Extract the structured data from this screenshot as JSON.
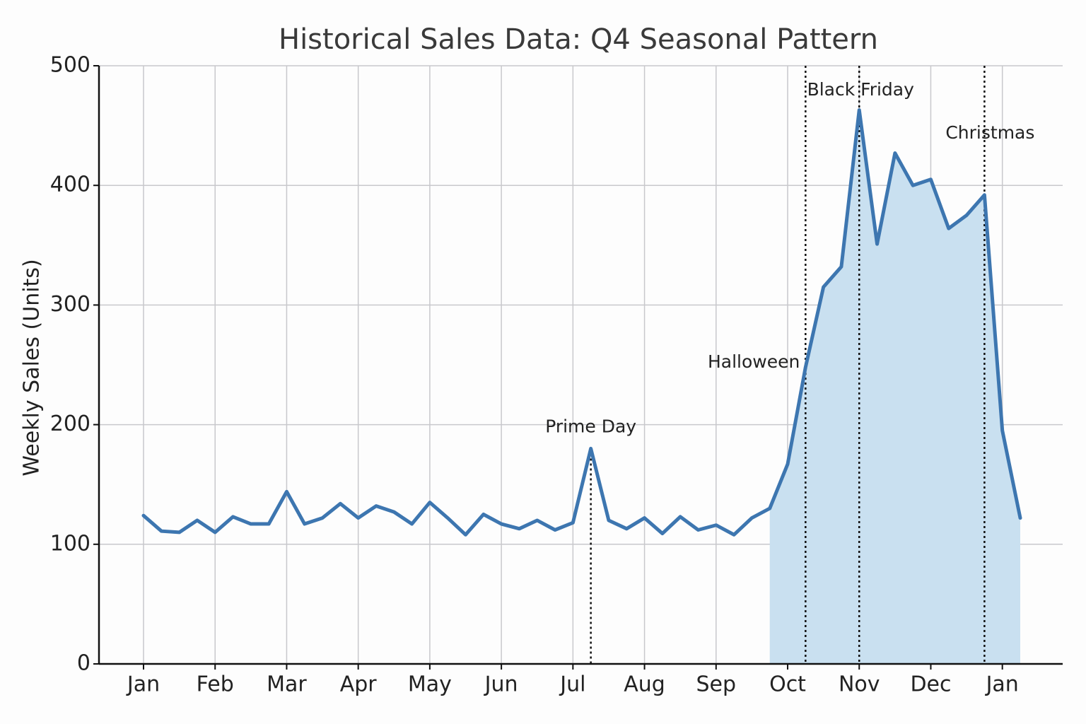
{
  "chart_data": {
    "type": "line",
    "title": "Historical Sales Data: Q4 Seasonal Pattern",
    "y_label": "Weekly Sales (Units)",
    "categories": [
      "Jan",
      null,
      null,
      null,
      "Feb",
      null,
      null,
      null,
      "Mar",
      null,
      null,
      null,
      "Apr",
      null,
      null,
      null,
      "May",
      null,
      null,
      null,
      "Jun",
      null,
      null,
      null,
      "Jul",
      null,
      null,
      null,
      "Aug",
      null,
      null,
      null,
      "Sep",
      null,
      null,
      null,
      "Oct",
      null,
      null,
      null,
      "Nov",
      null,
      null,
      null,
      "Dec",
      null,
      null,
      null,
      "Jan",
      null
    ],
    "values": [
      124,
      111,
      110,
      120,
      110,
      123,
      117,
      117,
      144,
      117,
      122,
      134,
      122,
      132,
      127,
      117,
      135,
      122,
      108,
      125,
      117,
      113,
      120,
      112,
      118,
      180,
      120,
      113,
      122,
      109,
      123,
      112,
      116,
      108,
      122,
      130,
      167,
      248,
      315,
      332,
      463,
      351,
      427,
      400,
      405,
      364,
      375,
      392,
      195,
      122
    ],
    "color": "#3d76b0",
    "fill_color": "#c9e0f0",
    "fill_from_index": 35,
    "ylim": [
      0,
      500
    ],
    "yticks": [
      0,
      100,
      200,
      300,
      400,
      500
    ],
    "grid": true,
    "annotations": [
      {
        "text": "Prime Day",
        "index": 25
      },
      {
        "text": "Halloween",
        "index": 37
      },
      {
        "text": "Black Friday",
        "index": 40
      },
      {
        "text": "Christmas",
        "index": 47
      }
    ]
  }
}
